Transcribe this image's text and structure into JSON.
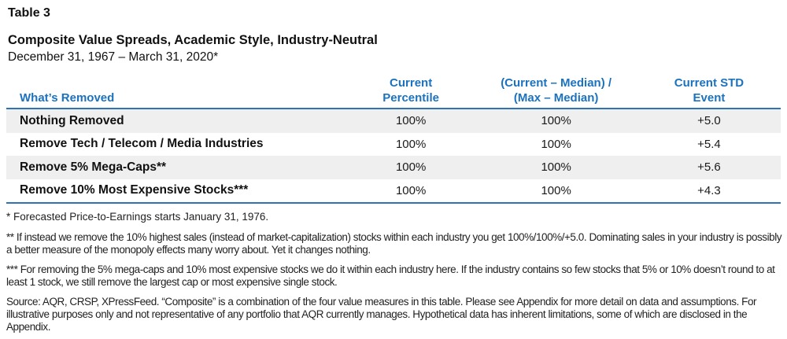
{
  "header": {
    "table_label": "Table 3",
    "title": "Composite Value Spreads, Academic Style, Industry-Neutral",
    "subtitle": "December 31, 1967 – March 31, 2020*"
  },
  "table": {
    "columns": {
      "col1": "What’s Removed",
      "col2": "Current\nPercentile",
      "col3": "(Current – Median) /\n(Max – Median)",
      "col4": "Current STD\nEvent"
    },
    "rows": [
      {
        "label": "Nothing Removed",
        "current_percentile": "100%",
        "current_median_ratio": "100%",
        "current_std_event": "+5.0"
      },
      {
        "label": "Remove Tech / Telecom / Media Industries",
        "current_percentile": "100%",
        "current_median_ratio": "100%",
        "current_std_event": "+5.4"
      },
      {
        "label": "Remove 5% Mega-Caps**",
        "current_percentile": "100%",
        "current_median_ratio": "100%",
        "current_std_event": "+5.6"
      },
      {
        "label": "Remove 10% Most Expensive Stocks***",
        "current_percentile": "100%",
        "current_median_ratio": "100%",
        "current_std_event": "+4.3"
      }
    ]
  },
  "footnotes": {
    "fn1": "* Forecasted Price-to-Earnings starts January 31, 1976.",
    "fn2": "** If instead we remove the 10% highest sales (instead of market-capitalization) stocks within each industry you get 100%/100%/+5.0. Dominating sales in your industry is possibly a better measure of the monopoly effects many worry about. Yet it changes nothing.",
    "fn3": "*** For removing the 5% mega-caps and 10% most expensive stocks we do it within each industry here. If the industry contains so few stocks that 5% or 10% doesn’t round to at least 1 stock, we still remove the largest cap or most expensive single stock.",
    "source": "Source: AQR, CRSP, XPressFeed. “Composite” is a combination of the four value measures in this table. Please see Appendix for more detail on data and assumptions. For illustrative purposes only and not representative of any portfolio that AQR currently manages. Hypothetical data has inherent limitations, some of which are disclosed in the Appendix."
  },
  "colors": {
    "accent_blue": "#1b72be",
    "rule_blue": "#2e74b5",
    "row_stripe": "#efefef"
  },
  "chart_data": {
    "type": "table",
    "title": "Composite Value Spreads, Academic Style, Industry-Neutral",
    "subtitle": "December 31, 1967 – March 31, 2020*",
    "columns": [
      "What’s Removed",
      "Current Percentile",
      "(Current – Median) / (Max – Median)",
      "Current STD Event"
    ],
    "rows": [
      [
        "Nothing Removed",
        "100%",
        "100%",
        "+5.0"
      ],
      [
        "Remove Tech / Telecom / Media Industries",
        "100%",
        "100%",
        "+5.4"
      ],
      [
        "Remove 5% Mega-Caps**",
        "100%",
        "100%",
        "+5.6"
      ],
      [
        "Remove 10% Most Expensive Stocks***",
        "100%",
        "100%",
        "+4.3"
      ]
    ]
  }
}
